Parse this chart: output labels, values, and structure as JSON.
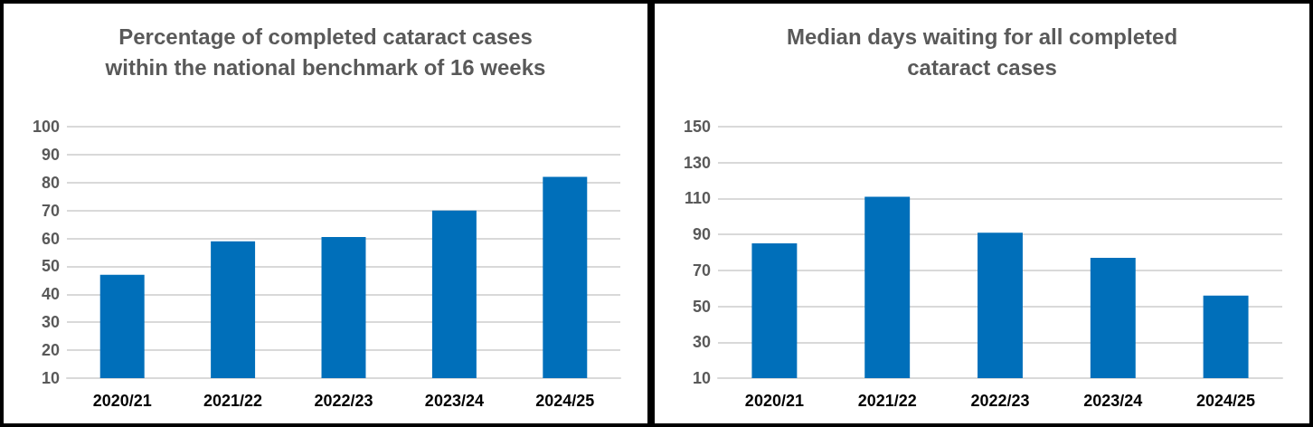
{
  "chart_data": [
    {
      "type": "bar",
      "title": "Percentage of completed cataract cases\nwithin the national benchmark of 16 weeks",
      "categories": [
        "2020/21",
        "2021/22",
        "2022/23",
        "2023/24",
        "2024/25"
      ],
      "values": [
        47,
        59,
        60.5,
        70,
        82
      ],
      "color": "#006fba",
      "ylim": [
        10,
        100
      ],
      "yticks": [
        10,
        20,
        30,
        40,
        50,
        60,
        70,
        80,
        90,
        100
      ],
      "grid": "y"
    },
    {
      "type": "bar",
      "title": "Median days waiting for all completed\ncataract cases",
      "categories": [
        "2020/21",
        "2021/22",
        "2022/23",
        "2023/24",
        "2024/25"
      ],
      "values": [
        85,
        111,
        91,
        77,
        56
      ],
      "color": "#006fba",
      "ylim": [
        10,
        150
      ],
      "yticks": [
        10,
        30,
        50,
        70,
        90,
        110,
        130,
        150
      ],
      "grid": "y"
    }
  ]
}
